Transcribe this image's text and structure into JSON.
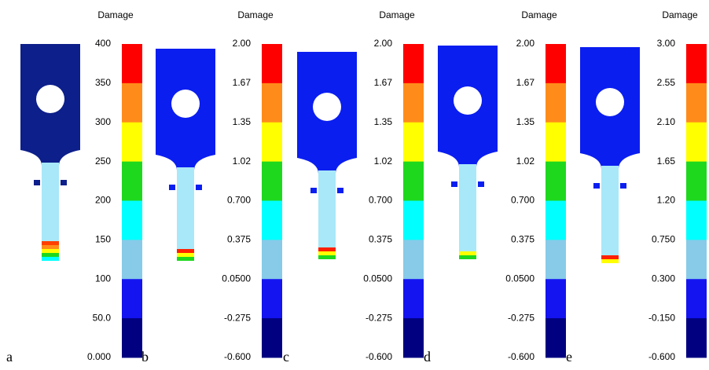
{
  "colors": [
    "#ff0000",
    "#ff8c1a",
    "#ffff00",
    "#1ed81e",
    "#00ffff",
    "#87cbe8",
    "#1414f0",
    "#000080"
  ],
  "panels": [
    {
      "label": "a",
      "title": "Damage",
      "ticks": [
        "400",
        "350",
        "300",
        "250",
        "200",
        "150",
        "100",
        "50.0",
        "0.000"
      ]
    },
    {
      "label": "b",
      "title": "Damage",
      "ticks": [
        "2.00",
        "1.67",
        "1.35",
        "1.02",
        "0.700",
        "0.375",
        "0.0500",
        "-0.275",
        "-0.600"
      ]
    },
    {
      "label": "c",
      "title": "Damage",
      "ticks": [
        "2.00",
        "1.67",
        "1.35",
        "1.02",
        "0.700",
        "0.375",
        "0.0500",
        "-0.275",
        "-0.600"
      ]
    },
    {
      "label": "d",
      "title": "Damage",
      "ticks": [
        "2.00",
        "1.67",
        "1.35",
        "1.02",
        "0.700",
        "0.375",
        "0.0500",
        "-0.275",
        "-0.600"
      ]
    },
    {
      "label": "e",
      "title": "Damage",
      "ticks": [
        "3.00",
        "2.55",
        "2.10",
        "1.65",
        "1.20",
        "0.750",
        "0.300",
        "-0.150",
        "-0.600"
      ]
    }
  ]
}
